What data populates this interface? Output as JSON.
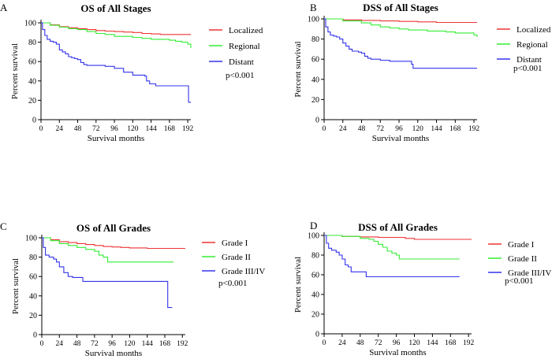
{
  "chart_data": [
    {
      "type": "line",
      "panel_label": "A",
      "title": "OS of All Stages",
      "xlabel": "Survival months",
      "ylabel": "Percent survival",
      "xlim": [
        0,
        196
      ],
      "ylim": [
        0,
        100
      ],
      "xticks": [
        0,
        24,
        48,
        72,
        96,
        120,
        144,
        168,
        192
      ],
      "yticks": [
        0,
        20,
        40,
        60,
        80,
        100
      ],
      "annotation": "p<0.001",
      "series": [
        {
          "name": "Localized",
          "color": "#ee3333",
          "x": [
            0,
            12,
            24,
            36,
            48,
            60,
            72,
            84,
            96,
            108,
            120,
            132,
            144,
            156,
            168,
            180,
            192,
            196
          ],
          "y": [
            100,
            98,
            96,
            95,
            94,
            93,
            92,
            91.5,
            91,
            90.5,
            90,
            89,
            88.5,
            88,
            88,
            88,
            88,
            88
          ]
        },
        {
          "name": "Regional",
          "color": "#33ee33",
          "x": [
            0,
            12,
            24,
            36,
            48,
            60,
            72,
            84,
            96,
            108,
            120,
            132,
            144,
            156,
            168,
            176,
            184,
            192,
            196
          ],
          "y": [
            100,
            97.5,
            95.5,
            94,
            93,
            91,
            89,
            88,
            86,
            86,
            85,
            84,
            83,
            83,
            82,
            81,
            80,
            78,
            74
          ]
        },
        {
          "name": "Distant",
          "color": "#3333ee",
          "x": [
            0,
            2,
            5,
            8,
            12,
            16,
            20,
            24,
            28,
            32,
            36,
            40,
            44,
            48,
            52,
            56,
            60,
            72,
            84,
            96,
            108,
            120,
            132,
            136,
            138,
            142,
            150,
            160,
            170,
            180,
            190,
            193,
            196
          ],
          "y": [
            100,
            93,
            87,
            83,
            81,
            80,
            78,
            72,
            70,
            68,
            65,
            64,
            63,
            62,
            59,
            57,
            56,
            56,
            55,
            53,
            49,
            46,
            46,
            45,
            40,
            37,
            35,
            35,
            35,
            35,
            35,
            18,
            18
          ]
        }
      ]
    },
    {
      "type": "line",
      "panel_label": "B",
      "title": "DSS of All Stages",
      "xlabel": "Survival months",
      "ylabel": "Percent survival",
      "xlim": [
        0,
        196
      ],
      "ylim": [
        0,
        100
      ],
      "xticks": [
        0,
        24,
        48,
        72,
        96,
        120,
        144,
        168,
        192
      ],
      "yticks": [
        0,
        20,
        40,
        60,
        80,
        100
      ],
      "annotation": "p<0.001",
      "series": [
        {
          "name": "Localized",
          "color": "#ee3333",
          "x": [
            0,
            24,
            48,
            72,
            96,
            120,
            144,
            168,
            192,
            196
          ],
          "y": [
            100,
            99,
            98.5,
            98,
            97.5,
            97,
            96.5,
            96.5,
            96.5,
            96.5
          ]
        },
        {
          "name": "Regional",
          "color": "#33ee33",
          "x": [
            0,
            24,
            48,
            60,
            72,
            84,
            96,
            108,
            120,
            132,
            144,
            156,
            168,
            180,
            192,
            196
          ],
          "y": [
            100,
            98,
            96,
            94,
            92,
            91,
            90,
            89,
            89,
            88,
            88,
            87,
            86,
            86,
            84,
            82
          ]
        },
        {
          "name": "Distant",
          "color": "#3333ee",
          "x": [
            0,
            2,
            5,
            8,
            12,
            16,
            20,
            24,
            28,
            32,
            36,
            44,
            48,
            52,
            56,
            60,
            72,
            84,
            96,
            108,
            112,
            114,
            120,
            144,
            168,
            192,
            196
          ],
          "y": [
            100,
            92,
            87,
            84,
            83,
            82,
            80,
            76,
            73,
            70,
            68,
            67,
            66,
            63,
            61,
            60,
            59,
            58,
            58,
            58,
            55,
            51,
            51,
            51,
            51,
            51,
            51
          ]
        }
      ]
    },
    {
      "type": "line",
      "panel_label": "C",
      "title": "OS of All Grades",
      "xlabel": "Survival months",
      "ylabel": "Percent survival",
      "xlim": [
        0,
        196
      ],
      "ylim": [
        0,
        100
      ],
      "xticks": [
        0,
        24,
        48,
        72,
        96,
        120,
        144,
        168,
        192
      ],
      "yticks": [
        0,
        20,
        40,
        60,
        80,
        100
      ],
      "annotation": "p<0.001",
      "series": [
        {
          "name": "Grade I",
          "color": "#ee3333",
          "x": [
            0,
            12,
            24,
            36,
            48,
            60,
            72,
            84,
            96,
            108,
            120,
            144,
            168,
            192,
            196
          ],
          "y": [
            100,
            98,
            96,
            95,
            94,
            93,
            92,
            91,
            90.5,
            90,
            89.5,
            89,
            89,
            89,
            89
          ]
        },
        {
          "name": "Grade II",
          "color": "#33ee33",
          "x": [
            0,
            12,
            24,
            36,
            48,
            60,
            72,
            78,
            84,
            90,
            96,
            120,
            144,
            168,
            180
          ],
          "y": [
            100,
            97,
            94,
            92,
            90,
            88,
            86,
            82,
            80,
            75,
            75,
            75,
            75,
            75,
            75
          ]
        },
        {
          "name": "Grade III/IV",
          "color": "#3333ee",
          "x": [
            0,
            2,
            5,
            10,
            16,
            20,
            24,
            30,
            36,
            42,
            48,
            56,
            60,
            84,
            108,
            132,
            156,
            170,
            172,
            178
          ],
          "y": [
            100,
            90,
            82,
            80,
            78,
            75,
            70,
            64,
            60,
            59,
            59,
            55,
            55,
            55,
            55,
            55,
            55,
            55,
            28,
            28
          ]
        }
      ]
    },
    {
      "type": "line",
      "panel_label": "D",
      "title": "DSS of All Grades",
      "xlabel": "Survival months",
      "ylabel": "Percent survival",
      "xlim": [
        0,
        196
      ],
      "ylim": [
        0,
        100
      ],
      "xticks": [
        0,
        24,
        48,
        72,
        96,
        120,
        144,
        168,
        192
      ],
      "yticks": [
        0,
        20,
        40,
        60,
        80,
        100
      ],
      "annotation": "p<0.001",
      "series": [
        {
          "name": "Grade I",
          "color": "#ee3333",
          "x": [
            0,
            24,
            48,
            72,
            96,
            108,
            120,
            144,
            168,
            192,
            196
          ],
          "y": [
            100,
            99,
            98.5,
            98,
            98,
            97,
            96,
            96,
            96,
            96,
            96
          ]
        },
        {
          "name": "Grade II",
          "color": "#33ee33",
          "x": [
            0,
            24,
            48,
            60,
            66,
            72,
            78,
            84,
            90,
            96,
            100,
            120,
            144,
            168,
            180
          ],
          "y": [
            100,
            99,
            97,
            96,
            94,
            91,
            88,
            84,
            82,
            80,
            76,
            76,
            76,
            76,
            76
          ]
        },
        {
          "name": "Grade III/IV",
          "color": "#3333ee",
          "x": [
            0,
            3,
            6,
            10,
            16,
            20,
            24,
            28,
            32,
            36,
            48,
            52,
            56,
            84,
            120,
            156,
            180
          ],
          "y": [
            100,
            92,
            87,
            85,
            83,
            80,
            76,
            70,
            68,
            63,
            63,
            63,
            58,
            58,
            58,
            58,
            58
          ]
        }
      ]
    }
  ]
}
